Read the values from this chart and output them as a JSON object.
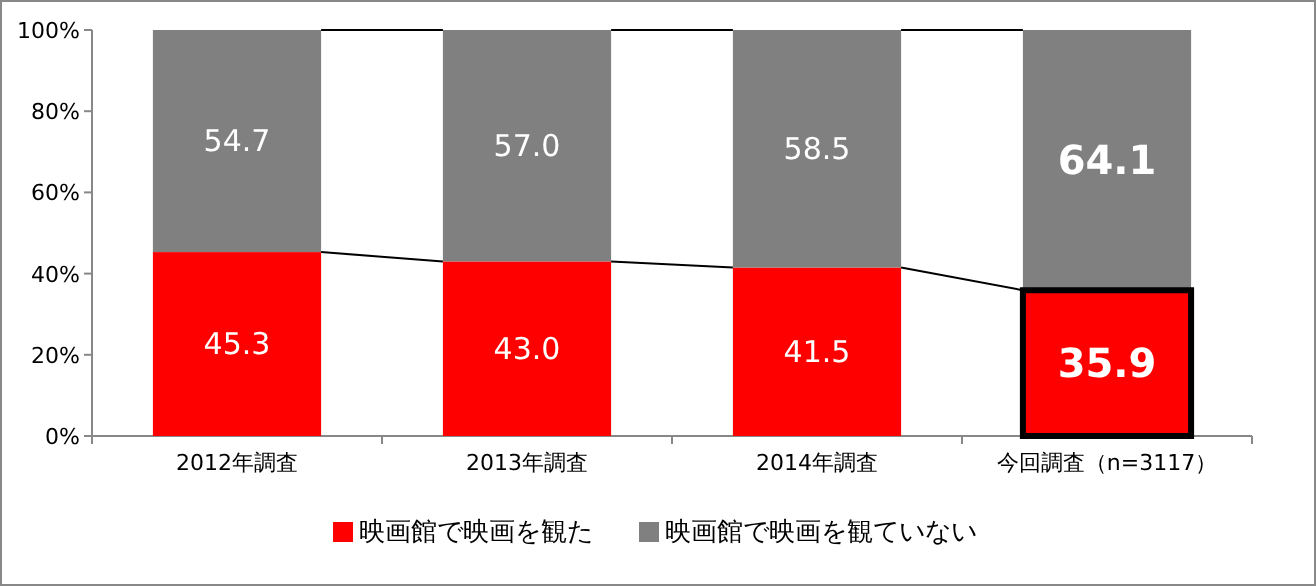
{
  "chart_data": {
    "type": "bar",
    "stacked": true,
    "categories": [
      "2012年調査",
      "2013年調査",
      "2014年調査",
      "今回調査（n=3117）"
    ],
    "series": [
      {
        "name": "映画館で映画を観た",
        "color": "#ff0000",
        "values": [
          45.3,
          43.0,
          41.5,
          35.9
        ]
      },
      {
        "name": "映画館で映画を観ていない",
        "color": "#808080",
        "values": [
          54.7,
          57.0,
          58.5,
          64.1
        ]
      }
    ],
    "value_labels": [
      [
        "45.3",
        "43.0",
        "41.5",
        "35.9"
      ],
      [
        "54.7",
        "57.0",
        "58.5",
        "64.1"
      ]
    ],
    "ylim": [
      0,
      100
    ],
    "yticks": [
      {
        "value": 0,
        "label": "0%"
      },
      {
        "value": 20,
        "label": "20%"
      },
      {
        "value": 40,
        "label": "40%"
      },
      {
        "value": 60,
        "label": "60%"
      },
      {
        "value": 80,
        "label": "80%"
      },
      {
        "value": 100,
        "label": "100%"
      }
    ],
    "grid": false,
    "legend": "bottom"
  }
}
